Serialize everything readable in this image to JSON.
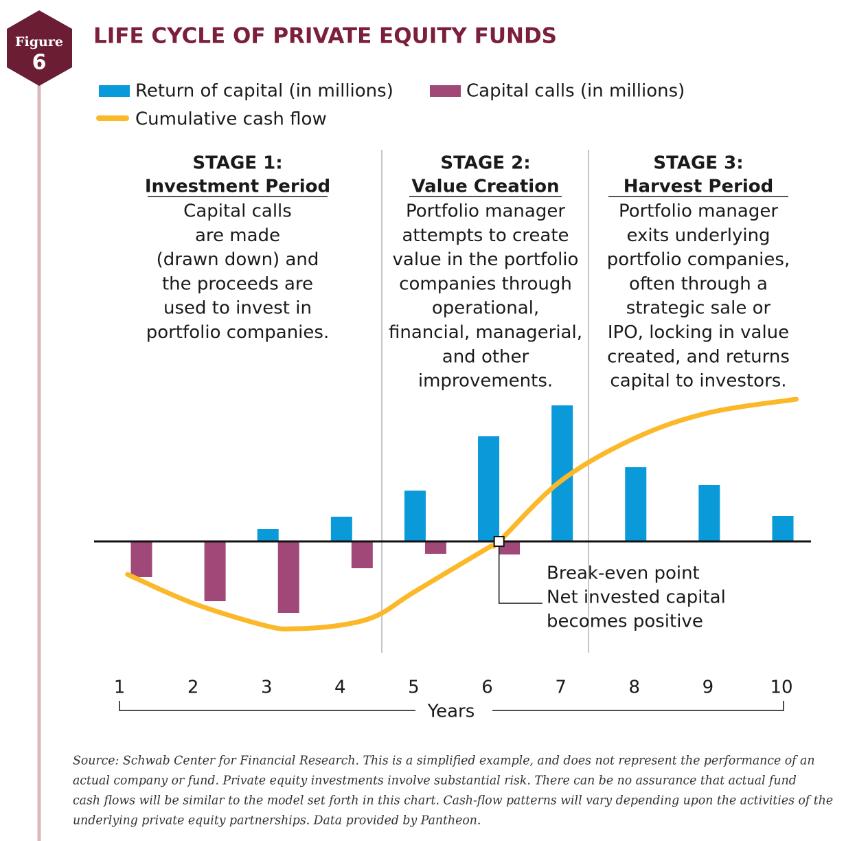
{
  "figure": {
    "label": "Figure",
    "number": "6"
  },
  "chart_data": {
    "type": "bar",
    "title": "LIFE CYCLE OF PRIVATE EQUITY FUNDS",
    "categories": [
      1,
      2,
      3,
      4,
      5,
      6,
      7,
      8,
      9,
      10
    ],
    "xlim": [
      1,
      10
    ],
    "ylim": [
      -130,
      210
    ],
    "x_axis_label": "Years",
    "series": [
      {
        "name": "Return of capital (in millions)",
        "color": "#0a9ad9",
        "values": [
          null,
          null,
          18,
          36,
          74,
          153,
          198,
          108,
          82,
          37
        ]
      },
      {
        "name": "Capital calls (in millions)",
        "color": "#a04978",
        "values": [
          -52,
          -87,
          -104,
          -39,
          -18,
          -19,
          null,
          null,
          null,
          null
        ]
      },
      {
        "name": "Cumulative cash flow",
        "type": "line",
        "color": "#fbb829",
        "x": [
          1.11,
          2,
          3,
          3.4,
          4,
          4.5,
          5,
          6,
          6.16,
          7,
          8,
          9,
          10.2
        ],
        "values": [
          -48,
          -90,
          -123,
          -127,
          -122,
          -108,
          -74,
          -10,
          0,
          88,
          150,
          187,
          207
        ]
      }
    ],
    "stages": [
      {
        "title": "STAGE 1:",
        "subtitle": "Investment Period",
        "lines": [
          "Capital calls",
          "are made",
          "(drawn down) and",
          "the proceeds are",
          "used to invest in",
          "portfolio companies."
        ]
      },
      {
        "title": "STAGE 2:",
        "subtitle": "Value Creation",
        "lines": [
          "Portfolio manager",
          "attempts to create",
          "value in the portfolio",
          "companies through",
          "operational,",
          "financial, managerial,",
          "and other",
          "improvements."
        ]
      },
      {
        "title": "STAGE 3:",
        "subtitle": "Harvest Period",
        "lines": [
          "Portfolio manager",
          "exits underlying",
          "portfolio companies,",
          "often through a",
          "strategic sale or",
          "IPO, locking in value",
          "created, and returns",
          "capital to investors."
        ]
      }
    ],
    "annotation": [
      "Break-even point",
      "Net invested capital",
      "becomes positive"
    ],
    "source": [
      "Source: Schwab Center for Financial Research. This is a simplified example, and does not represent the performance of an",
      "actual company or fund. Private equity investments involve substantial risk. There can be no assurance that actual fund",
      "cash flows will be similar to the model set forth in this chart. Cash-flow patterns will vary depending upon the activities of the",
      "underlying private equity partnerships. Data provided by Pantheon."
    ]
  }
}
